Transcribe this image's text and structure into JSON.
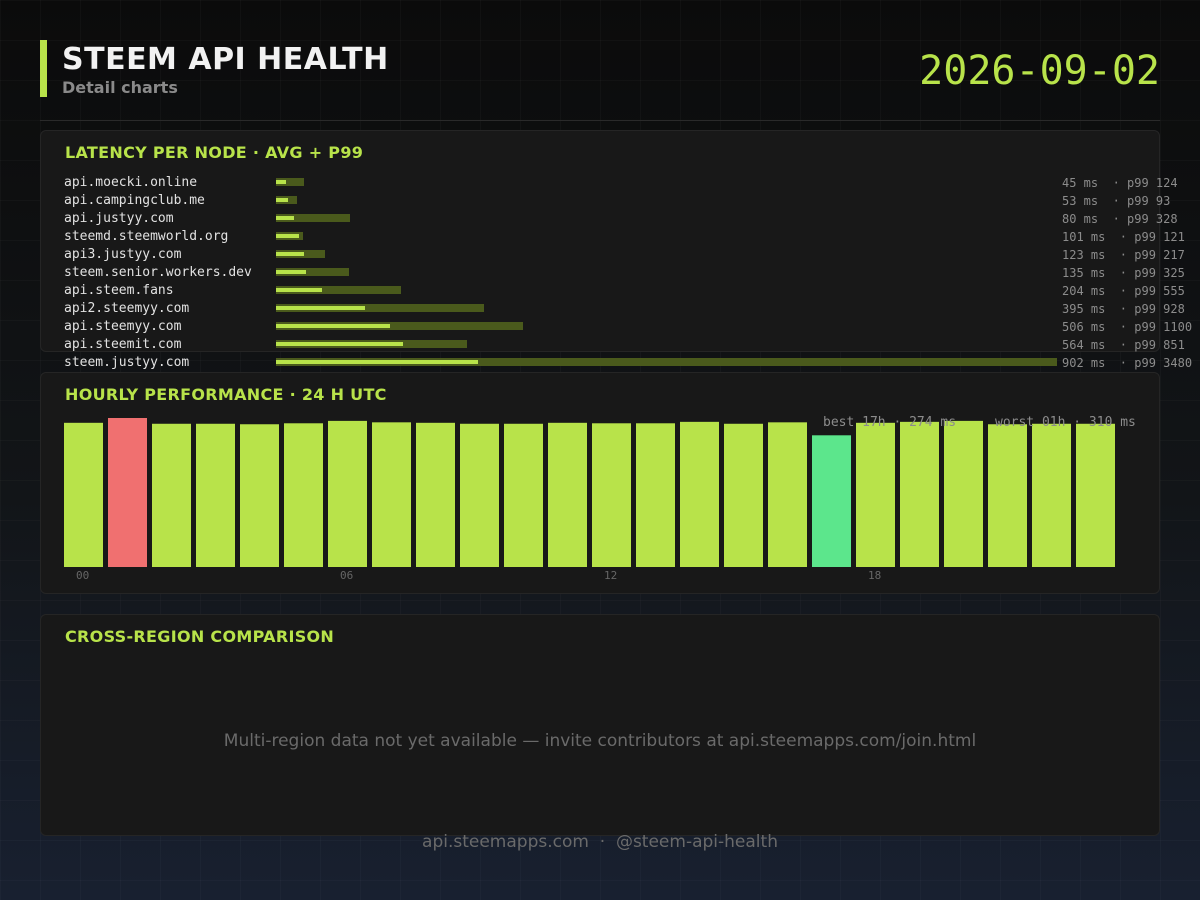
{
  "header": {
    "title": "STEEM API HEALTH",
    "subtitle": "Detail charts",
    "date": "2026-09-02",
    "accent_color": "#b8e34a"
  },
  "latency": {
    "title": "LATENCY PER NODE  ·  AVG + P99",
    "nodes": [
      {
        "name": "api.moecki.online",
        "avg": 45,
        "p99": 124,
        "value_text": "45 ms  · p99 124"
      },
      {
        "name": "api.campingclub.me",
        "avg": 53,
        "p99": 93,
        "value_text": "53 ms  · p99 93"
      },
      {
        "name": "api.justyy.com",
        "avg": 80,
        "p99": 328,
        "value_text": "80 ms  · p99 328"
      },
      {
        "name": "steemd.steemworld.org",
        "avg": 101,
        "p99": 121,
        "value_text": "101 ms  · p99 121"
      },
      {
        "name": "api3.justyy.com",
        "avg": 123,
        "p99": 217,
        "value_text": "123 ms  · p99 217"
      },
      {
        "name": "steem.senior.workers.dev",
        "avg": 135,
        "p99": 325,
        "value_text": "135 ms  · p99 325"
      },
      {
        "name": "api.steem.fans",
        "avg": 204,
        "p99": 555,
        "value_text": "204 ms  · p99 555"
      },
      {
        "name": "api2.steemyy.com",
        "avg": 395,
        "p99": 928,
        "value_text": "395 ms  · p99 928"
      },
      {
        "name": "api.steemyy.com",
        "avg": 506,
        "p99": 1100,
        "value_text": "506 ms  · p99 1100"
      },
      {
        "name": "api.steemit.com",
        "avg": 564,
        "p99": 851,
        "value_text": "564 ms  · p99 851"
      },
      {
        "name": "steem.justyy.com",
        "avg": 902,
        "p99": 3480,
        "value_text": "902 ms  · p99 3480"
      }
    ]
  },
  "hourly": {
    "title": "HOURLY PERFORMANCE  ·  24 H UTC",
    "best_label": "best 17h · 274 ms",
    "worst_label": "worst 01h · 310 ms"
  },
  "region": {
    "title": "CROSS-REGION COMPARISON",
    "message": "Multi-region data not yet available — invite contributors at api.steemapps.com/join.html"
  },
  "footer": {
    "text": "api.steemapps.com  ·  @steem-api-health"
  },
  "colors": {
    "bar": "#b8e34a",
    "p99_bar": "#4a5a1c",
    "best": "#5ce68c",
    "worst": "#f07070"
  },
  "chart_data": [
    {
      "type": "bar",
      "title": "LATENCY PER NODE  ·  AVG + P99",
      "categories": [
        "api.moecki.online",
        "api.campingclub.me",
        "api.justyy.com",
        "steemd.steemworld.org",
        "api3.justyy.com",
        "steem.senior.workers.dev",
        "api.steem.fans",
        "api2.steemyy.com",
        "api.steemyy.com",
        "api.steemit.com",
        "steem.justyy.com"
      ],
      "series": [
        {
          "name": "avg",
          "values": [
            45,
            53,
            80,
            101,
            123,
            135,
            204,
            395,
            506,
            564,
            902
          ]
        },
        {
          "name": "p99",
          "values": [
            124,
            93,
            328,
            121,
            217,
            325,
            555,
            928,
            1100,
            851,
            3480
          ]
        }
      ],
      "orientation": "horizontal",
      "unit": "ms"
    },
    {
      "type": "bar",
      "title": "HOURLY PERFORMANCE  ·  24 H UTC",
      "categories": [
        "00",
        "01",
        "02",
        "03",
        "04",
        "05",
        "06",
        "07",
        "08",
        "09",
        "10",
        "11",
        "12",
        "13",
        "14",
        "15",
        "16",
        "17",
        "18",
        "19",
        "20",
        "21",
        "22",
        "23"
      ],
      "values": [
        300,
        310,
        298,
        298,
        297,
        299,
        304,
        301,
        300,
        298,
        298,
        300,
        299,
        299,
        302,
        298,
        301,
        274,
        300,
        302,
        304,
        297,
        298,
        298
      ],
      "tick_labels": [
        "00",
        "06",
        "12",
        "18"
      ],
      "best_hour": 17,
      "worst_hour": 1,
      "unit": "ms"
    }
  ]
}
